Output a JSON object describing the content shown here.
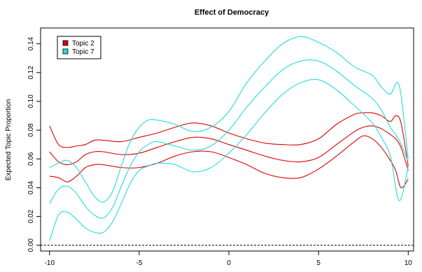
{
  "chart_data": {
    "type": "line",
    "title": "Effect of Democracy",
    "xlabel": "",
    "ylabel": "Expected Topic Proportion",
    "xlim": [
      -10.5,
      10.3
    ],
    "ylim": [
      -0.004,
      0.151
    ],
    "x_ticks": [
      -10,
      -5,
      0,
      5,
      10
    ],
    "y_ticks": [
      0.0,
      0.02,
      0.04,
      0.06,
      0.08,
      0.1,
      0.12,
      0.14
    ],
    "y_tick_labels": [
      "0.00",
      "0.02",
      "0.04",
      "0.06",
      "0.08",
      "0.10",
      "0.12",
      "0.14"
    ],
    "grid": false,
    "legend_position": "top-left",
    "reference_line": {
      "y": 0,
      "style": "dashed",
      "color": "#000000"
    },
    "series": [
      {
        "name": "Topic 2",
        "color": "#dd0000",
        "mean": {
          "x": [
            -10,
            -9.5,
            -9,
            -8.5,
            -8,
            -7.5,
            -7,
            -6,
            -5,
            -4,
            -3,
            -2,
            -1,
            0,
            1,
            2,
            3,
            4,
            5,
            6,
            7,
            7.5,
            8,
            8.5,
            9,
            9.3,
            9.6,
            10
          ],
          "y": [
            0.065,
            0.058,
            0.056,
            0.058,
            0.063,
            0.065,
            0.065,
            0.063,
            0.064,
            0.068,
            0.072,
            0.075,
            0.074,
            0.07,
            0.066,
            0.062,
            0.059,
            0.058,
            0.061,
            0.07,
            0.079,
            0.082,
            0.083,
            0.081,
            0.077,
            0.074,
            0.068,
            0.052
          ]
        },
        "lower": {
          "x": [
            -10,
            -9.5,
            -9,
            -8.5,
            -8,
            -7.5,
            -7,
            -6,
            -5,
            -4,
            -3,
            -2,
            -1,
            0,
            1,
            2,
            3,
            4,
            5,
            6,
            7,
            7.5,
            8,
            8.5,
            9,
            9.3,
            9.6,
            10
          ],
          "y": [
            0.048,
            0.047,
            0.044,
            0.048,
            0.054,
            0.056,
            0.056,
            0.054,
            0.054,
            0.057,
            0.062,
            0.065,
            0.065,
            0.061,
            0.056,
            0.05,
            0.047,
            0.047,
            0.053,
            0.062,
            0.072,
            0.076,
            0.074,
            0.068,
            0.059,
            0.052,
            0.04,
            0.046
          ]
        },
        "upper": {
          "x": [
            -10,
            -9.5,
            -9,
            -8.5,
            -8,
            -7.5,
            -7,
            -6,
            -5,
            -4,
            -3,
            -2,
            -1,
            0,
            1,
            2,
            3,
            4,
            5,
            6,
            7,
            7.5,
            8,
            8.5,
            9,
            9.3,
            9.6,
            10
          ],
          "y": [
            0.083,
            0.07,
            0.068,
            0.069,
            0.07,
            0.073,
            0.073,
            0.072,
            0.075,
            0.078,
            0.082,
            0.085,
            0.083,
            0.078,
            0.074,
            0.071,
            0.07,
            0.07,
            0.074,
            0.084,
            0.091,
            0.092,
            0.092,
            0.09,
            0.086,
            0.09,
            0.085,
            0.055
          ]
        }
      },
      {
        "name": "Topic 7",
        "color": "#22dddd",
        "mean": {
          "x": [
            -10,
            -9.5,
            -9,
            -8.5,
            -8,
            -7.5,
            -7,
            -6.5,
            -6,
            -5.5,
            -5,
            -4.5,
            -4,
            -3,
            -2,
            -1,
            0,
            1,
            2,
            3,
            4,
            5,
            6,
            7,
            8,
            8.5,
            9,
            9.5,
            10
          ],
          "y": [
            0.029,
            0.039,
            0.041,
            0.036,
            0.027,
            0.021,
            0.019,
            0.026,
            0.041,
            0.055,
            0.065,
            0.07,
            0.072,
            0.069,
            0.066,
            0.069,
            0.08,
            0.096,
            0.11,
            0.122,
            0.128,
            0.128,
            0.121,
            0.111,
            0.102,
            0.094,
            0.082,
            0.073,
            0.058
          ]
        },
        "lower": {
          "x": [
            -10,
            -9.5,
            -9,
            -8.5,
            -8,
            -7.5,
            -7,
            -6.5,
            -6,
            -5.5,
            -5,
            -4.5,
            -4,
            -3,
            -2,
            -1,
            0,
            1,
            2,
            3,
            4,
            5,
            6,
            7,
            8,
            8.5,
            9,
            9.5,
            10
          ],
          "y": [
            0.003,
            0.021,
            0.023,
            0.018,
            0.012,
            0.009,
            0.009,
            0.016,
            0.029,
            0.043,
            0.052,
            0.055,
            0.057,
            0.056,
            0.051,
            0.054,
            0.064,
            0.077,
            0.092,
            0.105,
            0.113,
            0.115,
            0.108,
            0.097,
            0.085,
            0.075,
            0.062,
            0.031,
            0.055
          ]
        },
        "upper": {
          "x": [
            -10,
            -9.5,
            -9,
            -8.5,
            -8,
            -7.5,
            -7,
            -6.5,
            -6,
            -5.5,
            -5,
            -4.5,
            -4,
            -3,
            -2,
            -1,
            0,
            1,
            2,
            3,
            4,
            5,
            6,
            7,
            8,
            8.5,
            9,
            9.5,
            10
          ],
          "y": [
            0.054,
            0.057,
            0.059,
            0.054,
            0.044,
            0.034,
            0.03,
            0.037,
            0.055,
            0.072,
            0.082,
            0.087,
            0.087,
            0.084,
            0.079,
            0.082,
            0.093,
            0.113,
            0.128,
            0.14,
            0.145,
            0.141,
            0.134,
            0.124,
            0.118,
            0.11,
            0.105,
            0.111,
            0.06
          ]
        }
      }
    ]
  }
}
